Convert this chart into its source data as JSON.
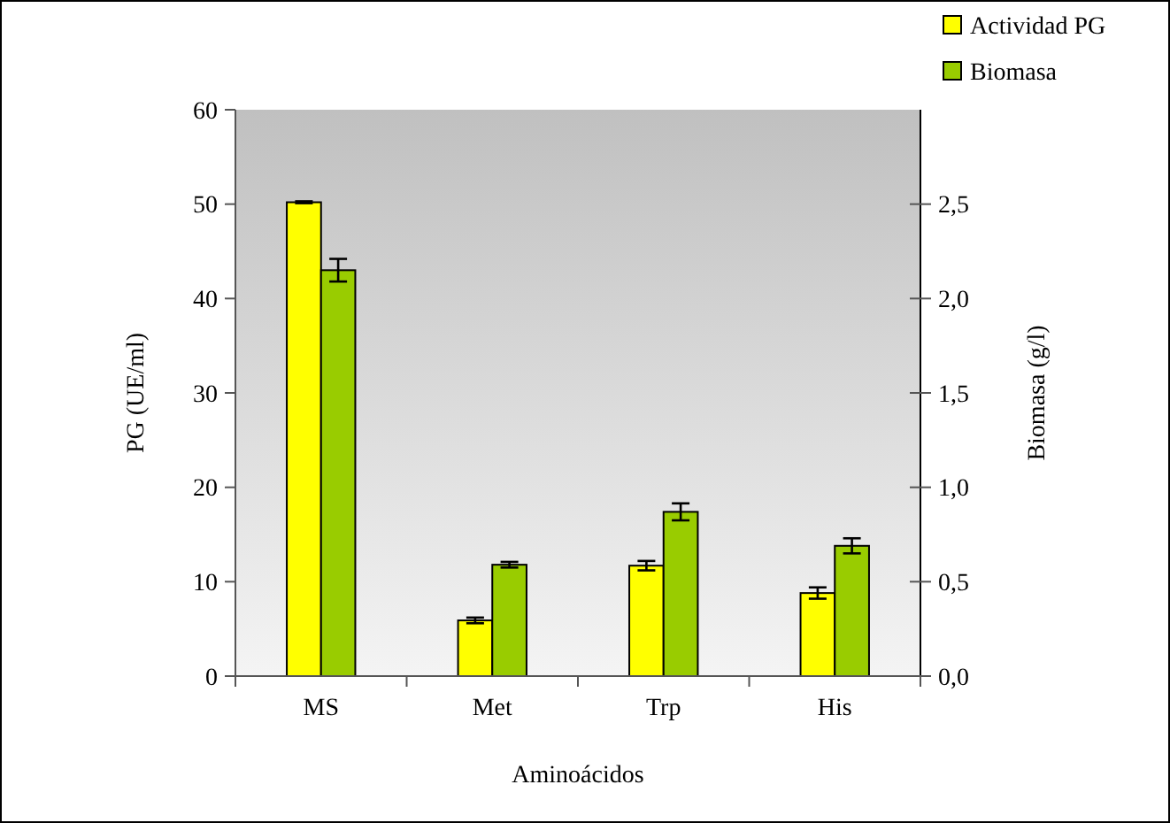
{
  "chart_data": {
    "type": "bar",
    "xlabel": "Aminoácidos",
    "ylabel": "PG (UE/ml)",
    "y2label": "Biomasa (g/l)",
    "categories": [
      "MS",
      "Met",
      "Trp",
      "His"
    ],
    "series": [
      {
        "name": "Actividad PG",
        "color": "#ffff00",
        "values": [
          50.2,
          5.9,
          11.7,
          8.8
        ],
        "errors": [
          0.1,
          0.3,
          0.5,
          0.6
        ]
      },
      {
        "name": "Biomasa",
        "color": "#99cc00",
        "axis": "y2",
        "values": [
          2.15,
          0.59,
          0.87,
          0.69
        ],
        "errors": [
          0.06,
          0.015,
          0.045,
          0.04
        ]
      }
    ],
    "ylim": [
      0,
      60
    ],
    "yticks": [
      0,
      10,
      20,
      30,
      40,
      50,
      60
    ],
    "y2lim": [
      0,
      3
    ],
    "y2ticks": [
      {
        "value": 0,
        "label": "0,0"
      },
      {
        "value": 0.5,
        "label": "0,5"
      },
      {
        "value": 1,
        "label": "1,0"
      },
      {
        "value": 1.5,
        "label": "1,5"
      },
      {
        "value": 2,
        "label": "2,0"
      },
      {
        "value": 2.5,
        "label": "2,5"
      }
    ],
    "legend": "top right",
    "grid": false
  }
}
